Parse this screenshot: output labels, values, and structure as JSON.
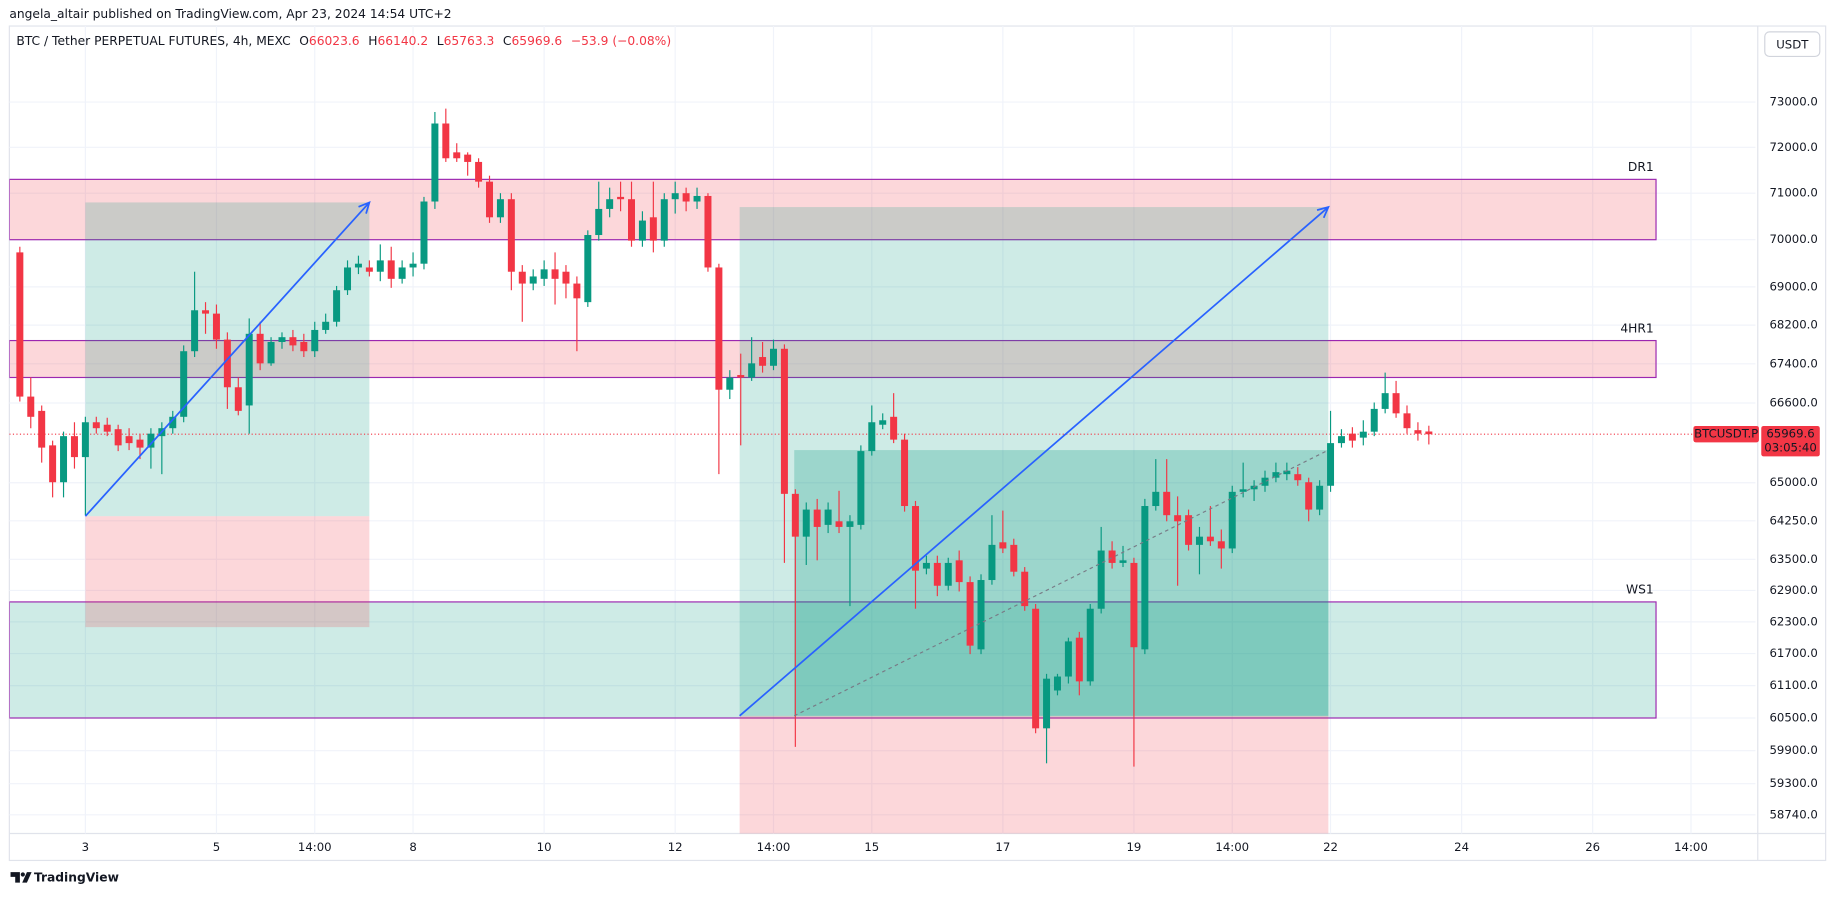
{
  "header": {
    "publisher": "angela_altair published on TradingView.com, Apr 23, 2024 14:54 UTC+2"
  },
  "footer": {
    "brand": "TradingView"
  },
  "chart_data": {
    "type": "candlestick",
    "title": "BTC / Tether PERPETUAL FUTURES, 4h, MEXC",
    "legend": {
      "open_label": "O",
      "open": "66023.6",
      "high_label": "H",
      "high": "66140.2",
      "low_label": "L",
      "low": "65763.3",
      "close_label": "C",
      "close": "65969.6",
      "change": "−53.9 (−0.08%)"
    },
    "currency": "USDT",
    "up_color": "#089981",
    "down_color": "#f23645",
    "log": true,
    "grid": true,
    "xlim": [
      -6.96,
      152.9
    ],
    "ylim": [
      58406,
      74713
    ],
    "xticks": [
      {
        "value": 0,
        "label": "3"
      },
      {
        "value": 12,
        "label": "5"
      },
      {
        "value": 21,
        "label": "14:00"
      },
      {
        "value": 30,
        "label": "8"
      },
      {
        "value": 42,
        "label": "10"
      },
      {
        "value": 54,
        "label": "12"
      },
      {
        "value": 63,
        "label": "14:00"
      },
      {
        "value": 72,
        "label": "15"
      },
      {
        "value": 84,
        "label": "17"
      },
      {
        "value": 96,
        "label": "19"
      },
      {
        "value": 105,
        "label": "14:00"
      },
      {
        "value": 114,
        "label": "22"
      },
      {
        "value": 126,
        "label": "24"
      },
      {
        "value": 138,
        "label": "26"
      },
      {
        "value": 147,
        "label": "14:00"
      }
    ],
    "yticks": [
      {
        "value": 73000,
        "label": "73000.0"
      },
      {
        "value": 72000,
        "label": "72000.0"
      },
      {
        "value": 71000,
        "label": "71000.0"
      },
      {
        "value": 70000,
        "label": "70000.0"
      },
      {
        "value": 69000,
        "label": "69000.0"
      },
      {
        "value": 68200,
        "label": "68200.0"
      },
      {
        "value": 67400,
        "label": "67400.0"
      },
      {
        "value": 66600,
        "label": "66600.0"
      },
      {
        "value": 65000,
        "label": "65000.0"
      },
      {
        "value": 64250,
        "label": "64250.0"
      },
      {
        "value": 63500,
        "label": "63500.0"
      },
      {
        "value": 62900,
        "label": "62900.0"
      },
      {
        "value": 62300,
        "label": "62300.0"
      },
      {
        "value": 61700,
        "label": "61700.0"
      },
      {
        "value": 61100,
        "label": "61100.0"
      },
      {
        "value": 60500,
        "label": "60500.0"
      },
      {
        "value": 59900,
        "label": "59900.0"
      },
      {
        "value": 59300,
        "label": "59300.0"
      },
      {
        "value": 58740,
        "label": "58740.0"
      }
    ],
    "x": [
      -6,
      -5,
      -4,
      -3,
      -2,
      -1,
      0,
      1,
      2,
      3,
      4,
      5,
      6,
      7,
      8,
      9,
      10,
      11,
      12,
      13,
      14,
      15,
      16,
      17,
      18,
      19,
      20,
      21,
      22,
      23,
      24,
      25,
      26,
      27,
      28,
      29,
      30,
      31,
      32,
      33,
      34,
      35,
      36,
      37,
      38,
      39,
      40,
      41,
      42,
      43,
      44,
      45,
      46,
      47,
      48,
      49,
      50,
      51,
      52,
      53,
      54,
      55,
      56,
      57,
      58,
      59,
      60,
      61,
      62,
      63,
      64,
      65,
      66,
      67,
      68,
      69,
      70,
      71,
      72,
      73,
      74,
      75,
      76,
      77,
      78,
      79,
      80,
      81,
      82,
      83,
      84,
      85,
      86,
      87,
      88,
      89,
      90,
      91,
      92,
      93,
      94,
      95,
      96,
      97,
      98,
      99,
      100,
      101,
      102,
      103,
      104,
      105,
      106,
      107,
      108,
      109,
      110,
      111,
      112,
      113,
      114,
      115,
      116,
      117,
      118,
      119,
      120,
      121,
      122,
      123
    ],
    "open": [
      69730,
      66730,
      66440,
      65745,
      65010,
      65930,
      65510,
      66210,
      66160,
      66070,
      65930,
      65860,
      65700,
      65930,
      66090,
      66320,
      67660,
      68510,
      68440,
      67900,
      66920,
      66550,
      68020,
      67410,
      67850,
      67950,
      67850,
      67660,
      68100,
      68270,
      68930,
      69410,
      69410,
      69320,
      69560,
      69170,
      69410,
      69490,
      70820,
      72525,
      71890,
      71840,
      71680,
      71250,
      70480,
      70870,
      69320,
      69070,
      69170,
      69370,
      69320,
      69070,
      68680,
      70100,
      70660,
      70920,
      70870,
      69980,
      70480,
      69980,
      70870,
      71000,
      70820,
      70940,
      69410,
      66870,
      67170,
      67120,
      67540,
      67360,
      67710,
      64780,
      63940,
      64470,
      64170,
      64240,
      64130,
      64170,
      65630,
      66160,
      66320,
      65860,
      64540,
      63320,
      63430,
      62990,
      63480,
      63060,
      61780,
      63100,
      63830,
      63780,
      63260,
      62550,
      60310,
      61010,
      61270,
      62000,
      61180,
      62550,
      63670,
      63430,
      63430,
      61780,
      64540,
      64820,
      64360,
      64360,
      63780,
      63940,
      63850,
      63710,
      64820,
      64870,
      64940,
      65100,
      65170,
      65170,
      65010,
      64470,
      64940,
      65790,
      65980,
      65900,
      66020,
      66480,
      66800,
      66390,
      66050,
      66023.6
    ],
    "high": [
      69850,
      67120,
      66550,
      65840,
      66020,
      66210,
      66320,
      66320,
      66300,
      66160,
      66090,
      65980,
      66090,
      66210,
      66440,
      67780,
      69320,
      68680,
      68630,
      68050,
      67120,
      68340,
      68270,
      67950,
      68050,
      68100,
      68020,
      68270,
      68440,
      69020,
      69560,
      69660,
      69560,
      69900,
      69850,
      69560,
      69730,
      70920,
      72780,
      72856,
      72090,
      71890,
      71760,
      71380,
      71000,
      71000,
      69460,
      69370,
      69560,
      69730,
      69460,
      69220,
      70200,
      71250,
      71120,
      71250,
      71250,
      70610,
      71250,
      71000,
      71250,
      71120,
      71120,
      71000,
      69490,
      67270,
      67610,
      67950,
      67850,
      67900,
      67800,
      64870,
      64610,
      64680,
      64610,
      64840,
      64360,
      65745,
      66550,
      66390,
      66800,
      65980,
      64640,
      63570,
      63570,
      63530,
      63670,
      63170,
      63210,
      64360,
      64450,
      63900,
      63350,
      62640,
      61320,
      61320,
      62000,
      62110,
      62640,
      64130,
      63850,
      63760,
      63530,
      64680,
      65470,
      65470,
      64730,
      64470,
      64130,
      64540,
      64080,
      64940,
      65400,
      65050,
      65240,
      65400,
      65400,
      65310,
      65100,
      65050,
      66440,
      66070,
      66110,
      66250,
      66610,
      67220,
      67050,
      66550,
      66210,
      66140.2
    ],
    "low": [
      66630,
      66090,
      65400,
      64710,
      64710,
      65280,
      64360,
      65980,
      65930,
      65630,
      65650,
      65470,
      65280,
      65170,
      65980,
      66210,
      67540,
      68020,
      67710,
      66480,
      66350,
      65980,
      67270,
      67360,
      67710,
      67660,
      67540,
      67540,
      68020,
      68170,
      68830,
      69270,
      69220,
      69120,
      68980,
      69070,
      69220,
      69370,
      70660,
      71680,
      71680,
      71380,
      71120,
      70360,
      70360,
      68930,
      68270,
      68930,
      69020,
      68630,
      68760,
      67660,
      68580,
      69980,
      70480,
      70610,
      69850,
      69850,
      69730,
      69850,
      70560,
      70610,
      70660,
      69320,
      65170,
      66680,
      65745,
      67050,
      67220,
      67270,
      63430,
      59970,
      63390,
      63480,
      64010,
      64010,
      62600,
      64080,
      65540,
      66070,
      65790,
      64430,
      62550,
      63210,
      62790,
      62900,
      62880,
      61690,
      61690,
      63010,
      63620,
      63170,
      62510,
      60220,
      59670,
      60920,
      61140,
      60920,
      61100,
      62460,
      63320,
      63350,
      59610,
      61690,
      64450,
      64240,
      62990,
      63670,
      63210,
      63760,
      63320,
      63620,
      64710,
      64640,
      64820,
      65010,
      65050,
      64940,
      64240,
      64360,
      64820,
      65700,
      65700,
      65745,
      65930,
      66390,
      66300,
      65980,
      65840,
      65763.3
    ],
    "close": [
      66730,
      66320,
      65700,
      65010,
      65930,
      65510,
      66210,
      66090,
      66020,
      65745,
      65790,
      65700,
      65980,
      66090,
      66320,
      67660,
      68510,
      68440,
      67900,
      66920,
      66440,
      68020,
      67410,
      67850,
      67950,
      67780,
      67660,
      68100,
      68270,
      68930,
      69410,
      69490,
      69320,
      69560,
      69170,
      69410,
      69490,
      70820,
      72525,
      71760,
      71760,
      71680,
      71250,
      70480,
      70870,
      69320,
      69070,
      69220,
      69370,
      69170,
      69070,
      68760,
      70100,
      70660,
      70870,
      70870,
      69980,
      70410,
      69980,
      70870,
      71000,
      70820,
      70940,
      69410,
      66870,
      67120,
      67120,
      67410,
      67360,
      67710,
      64780,
      63940,
      64470,
      64130,
      64470,
      64130,
      64240,
      65630,
      66210,
      66250,
      65860,
      64540,
      63280,
      63430,
      62990,
      63430,
      63060,
      61850,
      63100,
      63780,
      63710,
      63260,
      62600,
      60310,
      61230,
      61270,
      61930,
      61180,
      62550,
      63670,
      63430,
      63480,
      61820,
      64540,
      64820,
      64360,
      64240,
      63780,
      63940,
      63850,
      63710,
      64820,
      64870,
      64940,
      65100,
      65210,
      65240,
      65050,
      64470,
      64940,
      65790,
      65930,
      65840,
      66020,
      66480,
      66800,
      66390,
      66090,
      65980,
      65969.6
    ],
    "last_price": {
      "symbol": "BTCUSDT.P",
      "value": 65969.6,
      "countdown": "03:05:40"
    },
    "zones": [
      {
        "label": "DR1",
        "top": 71300,
        "bottom": 70000,
        "x_start": -6.96,
        "x_end": 143.8,
        "fill": "rgba(242,54,69,0.2)"
      },
      {
        "label": "4HR1",
        "top": 67880,
        "bottom": 67120,
        "x_start": -6.96,
        "x_end": 143.8,
        "fill": "rgba(242,54,69,0.2)"
      },
      {
        "label": "WS1",
        "top": 62680,
        "bottom": 60500,
        "x_start": -6.96,
        "x_end": 143.8,
        "fill": "rgba(8,153,129,0.2)"
      }
    ],
    "zone_border": "#9c27b0",
    "positions": [
      {
        "x_start": 0,
        "x_end": 26,
        "entry": 64340,
        "target": 70800,
        "stop": 62200
      },
      {
        "x_start": 59.9,
        "x_end": 113.8,
        "entry": 60540,
        "target": 70700,
        "stop": 58406,
        "progress_x": 64.9,
        "progress_price": 65650
      }
    ],
    "arrow_color": "#2962ff"
  }
}
